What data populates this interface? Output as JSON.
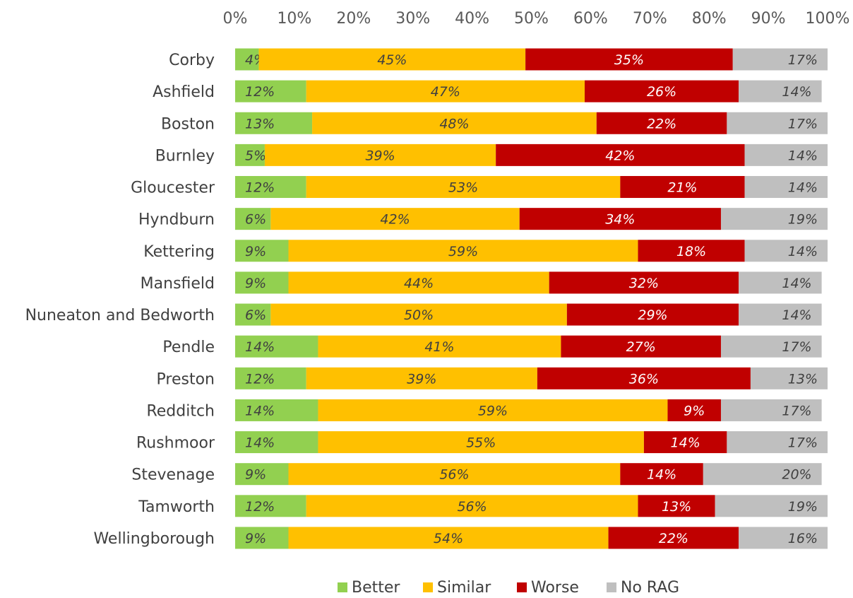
{
  "chart_data": {
    "type": "bar",
    "orientation": "horizontal",
    "stacked": "percent",
    "title": "",
    "xlabel": "",
    "ylabel": "",
    "xlim": [
      0,
      100
    ],
    "x_ticks": [
      "0%",
      "10%",
      "20%",
      "30%",
      "40%",
      "50%",
      "60%",
      "70%",
      "80%",
      "90%",
      "100%"
    ],
    "x_axis_position": "top",
    "grid": false,
    "legend": "bottom",
    "categories": [
      "Corby",
      "Ashfield",
      "Boston",
      "Burnley",
      "Gloucester",
      "Hyndburn",
      "Kettering",
      "Mansfield",
      "Nuneaton and Bedworth",
      "Pendle",
      "Preston",
      "Redditch",
      "Rushmoor",
      "Stevenage",
      "Tamworth",
      "Wellingborough"
    ],
    "series": [
      {
        "name": "Better",
        "color": "#92d050",
        "label_color": "#404040",
        "values": [
          4,
          12,
          13,
          5,
          12,
          6,
          9,
          9,
          6,
          14,
          12,
          14,
          14,
          9,
          12,
          9
        ],
        "labels": [
          "4%",
          "12%",
          "13%",
          "5%",
          "12%",
          "6%",
          "9%",
          "9%",
          "6%",
          "14%",
          "12%",
          "14%",
          "14%",
          "9%",
          "12%",
          "9%"
        ]
      },
      {
        "name": "Similar",
        "color": "#ffc000",
        "label_color": "#404040",
        "values": [
          45,
          47,
          48,
          39,
          53,
          42,
          59,
          44,
          50,
          41,
          39,
          59,
          55,
          56,
          56,
          54
        ],
        "labels": [
          "45%",
          "47%",
          "48%",
          "39%",
          "53%",
          "42%",
          "59%",
          "44%",
          "50%",
          "41%",
          "39%",
          "59%",
          "55%",
          "56%",
          "56%",
          "54%"
        ]
      },
      {
        "name": "Worse",
        "color": "#c00000",
        "label_color": "#ffffff",
        "values": [
          35,
          26,
          22,
          42,
          21,
          34,
          18,
          32,
          29,
          27,
          36,
          9,
          14,
          14,
          13,
          22
        ],
        "labels": [
          "35%",
          "26%",
          "22%",
          "42%",
          "21%",
          "34%",
          "18%",
          "32%",
          "29%",
          "27%",
          "36%",
          "9%",
          "14%",
          "14%",
          "13%",
          "22%"
        ]
      },
      {
        "name": "No RAG",
        "color": "#bfbfbf",
        "label_color": "#404040",
        "values": [
          17,
          14,
          17,
          14,
          14,
          19,
          14,
          14,
          14,
          17,
          13,
          17,
          17,
          20,
          19,
          16
        ],
        "labels": [
          "17%",
          "14%",
          "17%",
          "14%",
          "14%",
          "19%",
          "14%",
          "14%",
          "14%",
          "17%",
          "13%",
          "17%",
          "17%",
          "20%",
          "19%",
          "16%"
        ]
      }
    ]
  }
}
